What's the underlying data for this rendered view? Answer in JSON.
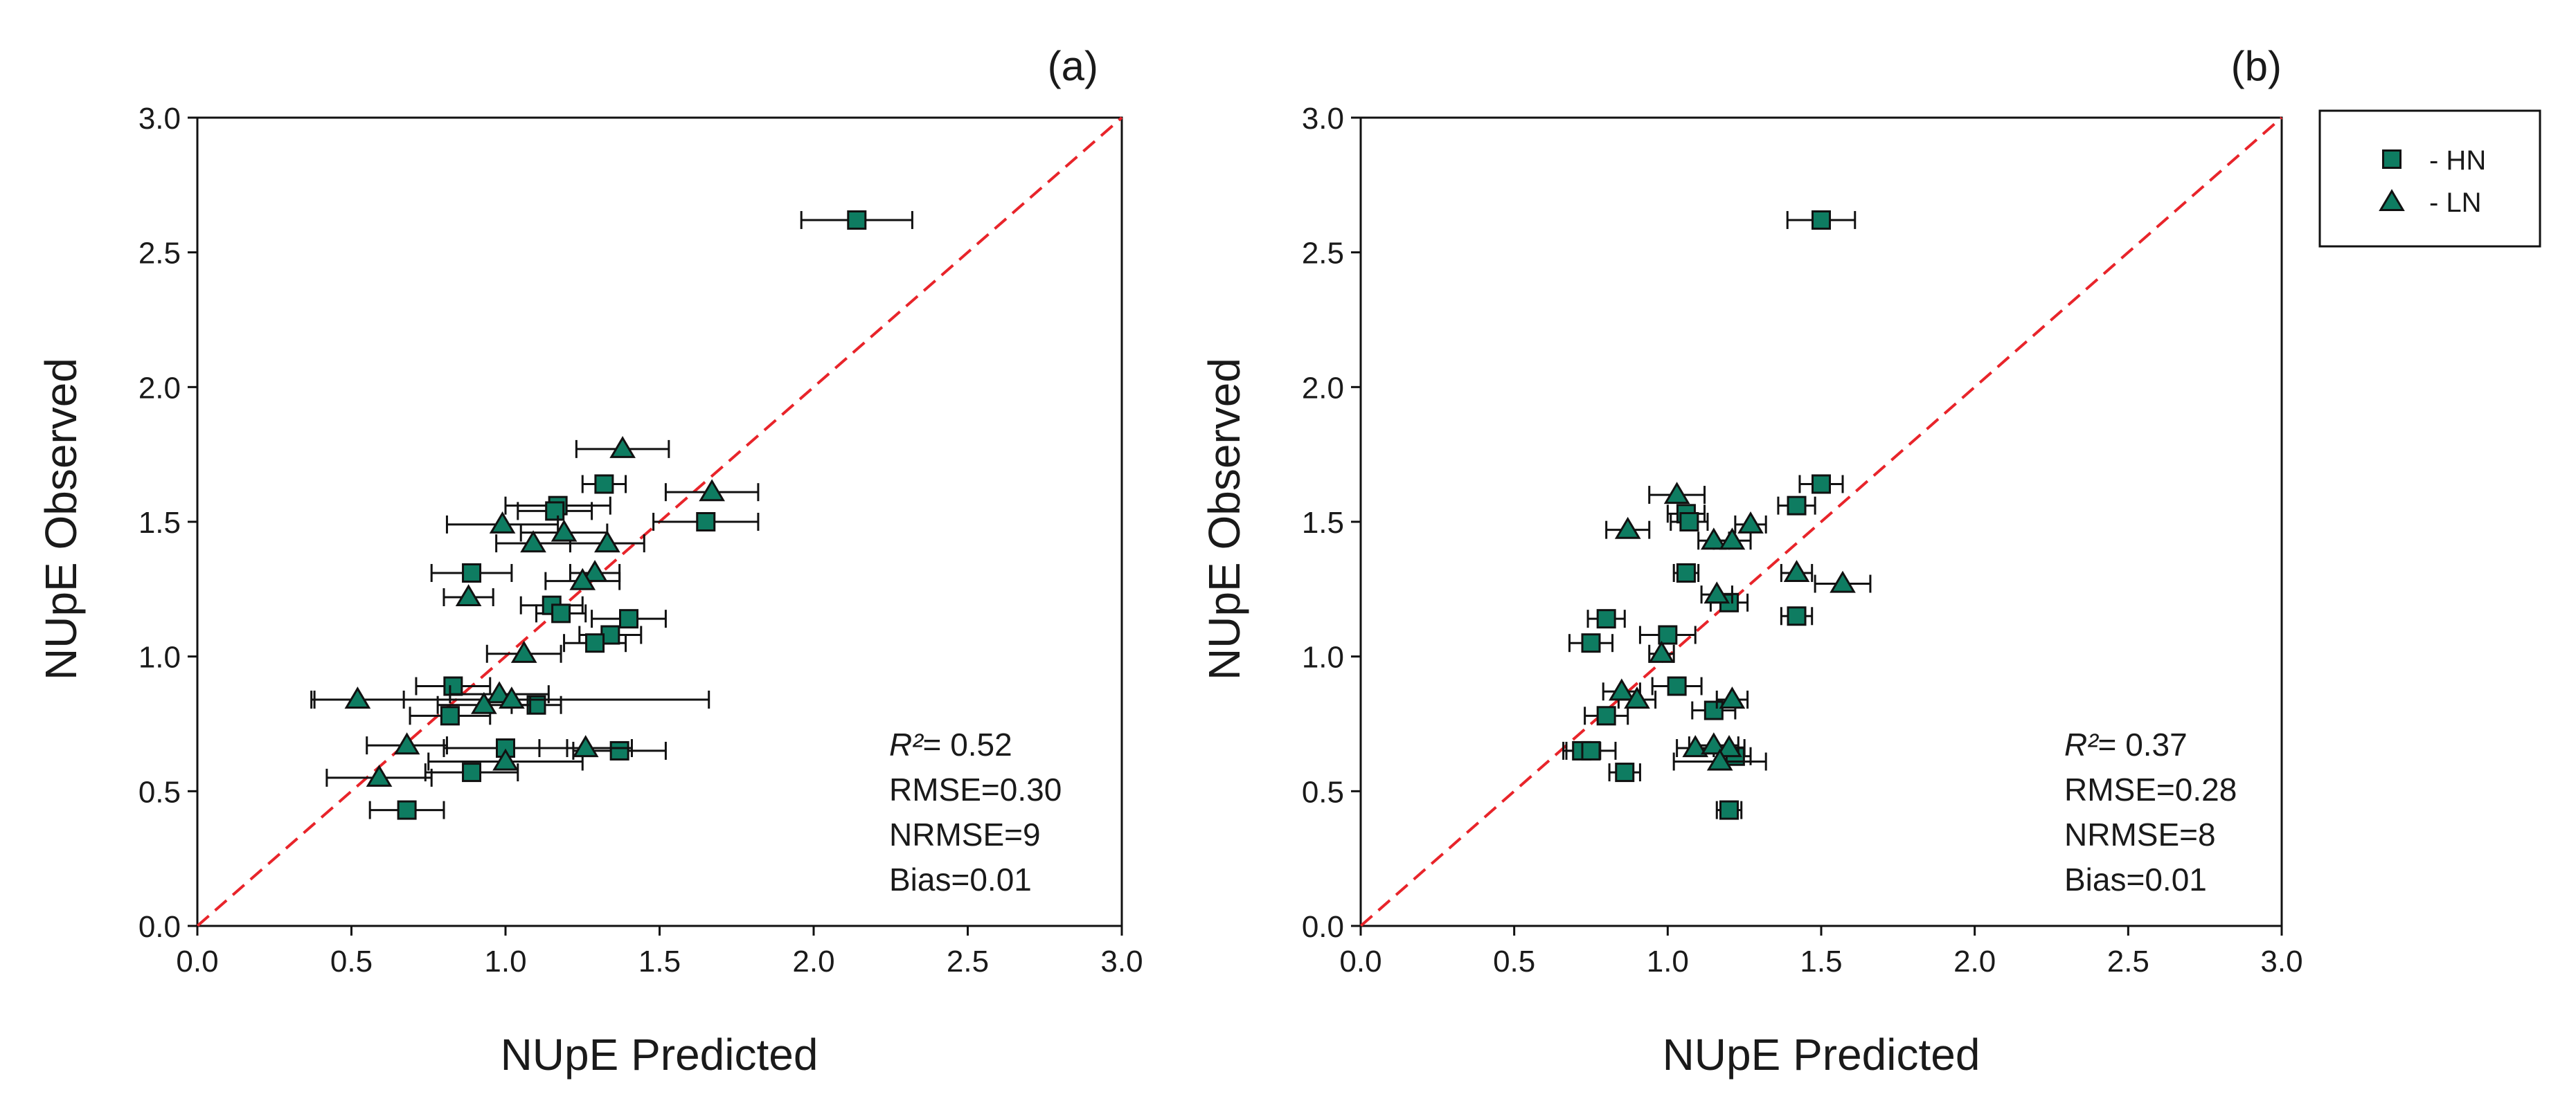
{
  "colors": {
    "marker_fill": "#0E7C61",
    "marker_stroke": "#111111",
    "one_to_one": "#E8242A",
    "axis": "#111111"
  },
  "legend": {
    "items": [
      {
        "label": "- HN",
        "marker": "square"
      },
      {
        "label": "- LN",
        "marker": "triangle"
      }
    ]
  },
  "chart_data": [
    {
      "type": "scatter",
      "panel_label": "(a)",
      "xlabel": "NUpE Predicted",
      "ylabel": "NUpE Observed",
      "xlim": [
        0,
        3
      ],
      "ylim": [
        0,
        3
      ],
      "xticks": [
        "0.0",
        "0.5",
        "1.0",
        "1.5",
        "2.0",
        "2.5",
        "3.0"
      ],
      "yticks": [
        "0.0",
        "0.5",
        "1.0",
        "1.5",
        "2.0",
        "2.5",
        "3.0"
      ],
      "reference_line": "1:1",
      "stats": {
        "r2_label": "R²",
        "r2_value": "= 0.52",
        "rmse": "RMSE=0.30",
        "nrmse": "NRMSE=9",
        "bias": "Bias=0.01"
      },
      "series": [
        {
          "name": "HN",
          "marker": "square",
          "points": [
            {
              "x": 2.14,
              "y": 2.62,
              "xerr": 0.18
            },
            {
              "x": 1.32,
              "y": 1.64,
              "xerr": 0.07
            },
            {
              "x": 1.17,
              "y": 1.56,
              "xerr": 0.17
            },
            {
              "x": 1.16,
              "y": 1.54,
              "xerr": 0.12
            },
            {
              "x": 1.65,
              "y": 1.5,
              "xerr": 0.17
            },
            {
              "x": 0.89,
              "y": 1.31,
              "xerr": 0.13
            },
            {
              "x": 1.15,
              "y": 1.19,
              "xerr": 0.1
            },
            {
              "x": 1.18,
              "y": 1.16,
              "xerr": 0.08
            },
            {
              "x": 1.4,
              "y": 1.14,
              "xerr": 0.12
            },
            {
              "x": 1.34,
              "y": 1.08,
              "xerr": 0.1
            },
            {
              "x": 1.29,
              "y": 1.05,
              "xerr": 0.1
            },
            {
              "x": 0.83,
              "y": 0.89,
              "xerr": 0.12
            },
            {
              "x": 0.82,
              "y": 0.78,
              "xerr": 0.13
            },
            {
              "x": 1.1,
              "y": 0.82,
              "xerr": 0.08
            },
            {
              "x": 1.0,
              "y": 0.66,
              "xerr": 0.2
            },
            {
              "x": 1.37,
              "y": 0.65,
              "xerr": 0.15
            },
            {
              "x": 0.89,
              "y": 0.57,
              "xerr": 0.15
            },
            {
              "x": 0.68,
              "y": 0.43,
              "xerr": 0.12
            }
          ]
        },
        {
          "name": "LN",
          "marker": "triangle",
          "points": [
            {
              "x": 1.38,
              "y": 1.77,
              "xerr": 0.15
            },
            {
              "x": 1.67,
              "y": 1.61,
              "xerr": 0.15
            },
            {
              "x": 0.99,
              "y": 1.49,
              "xerr": 0.18
            },
            {
              "x": 1.19,
              "y": 1.46,
              "xerr": 0.14
            },
            {
              "x": 1.09,
              "y": 1.42,
              "xerr": 0.12
            },
            {
              "x": 1.33,
              "y": 1.42,
              "xerr": 0.12
            },
            {
              "x": 1.29,
              "y": 1.31,
              "xerr": 0.08
            },
            {
              "x": 1.25,
              "y": 1.28,
              "xerr": 0.12
            },
            {
              "x": 0.88,
              "y": 1.22,
              "xerr": 0.08
            },
            {
              "x": 1.06,
              "y": 1.01,
              "xerr": 0.12
            },
            {
              "x": 0.52,
              "y": 0.84,
              "xerr": 0.15
            },
            {
              "x": 0.98,
              "y": 0.86,
              "xerr": 0.16
            },
            {
              "x": 0.93,
              "y": 0.82,
              "xerr": 0.15
            },
            {
              "x": 1.02,
              "y": 0.84,
              "xerr": 0.64
            },
            {
              "x": 0.68,
              "y": 0.67,
              "xerr": 0.13
            },
            {
              "x": 1.26,
              "y": 0.66,
              "xerr": 0.15
            },
            {
              "x": 1.0,
              "y": 0.61,
              "xerr": 0.25
            },
            {
              "x": 0.59,
              "y": 0.55,
              "xerr": 0.17
            }
          ]
        }
      ]
    },
    {
      "type": "scatter",
      "panel_label": "(b)",
      "xlabel": "NUpE Predicted",
      "ylabel": "NUpE Observed",
      "xlim": [
        0,
        3
      ],
      "ylim": [
        0,
        3
      ],
      "xticks": [
        "0.0",
        "0.5",
        "1.0",
        "1.5",
        "2.0",
        "2.5",
        "3.0"
      ],
      "yticks": [
        "0.0",
        "0.5",
        "1.0",
        "1.5",
        "2.0",
        "2.5",
        "3.0"
      ],
      "reference_line": "1:1",
      "stats": {
        "r2_label": "R²",
        "r2_value": "= 0.37",
        "rmse": "RMSE=0.28",
        "nrmse": "NRMSE=8",
        "bias": "Bias=0.01"
      },
      "series": [
        {
          "name": "HN",
          "marker": "square",
          "points": [
            {
              "x": 1.5,
              "y": 2.62,
              "xerr": 0.11
            },
            {
              "x": 1.5,
              "y": 1.64,
              "xerr": 0.07
            },
            {
              "x": 1.42,
              "y": 1.56,
              "xerr": 0.06
            },
            {
              "x": 1.06,
              "y": 1.53,
              "xerr": 0.06
            },
            {
              "x": 1.07,
              "y": 1.5,
              "xerr": 0.06
            },
            {
              "x": 1.06,
              "y": 1.31,
              "xerr": 0.04
            },
            {
              "x": 1.2,
              "y": 1.2,
              "xerr": 0.06
            },
            {
              "x": 1.42,
              "y": 1.15,
              "xerr": 0.05
            },
            {
              "x": 0.8,
              "y": 1.14,
              "xerr": 0.06
            },
            {
              "x": 0.75,
              "y": 1.05,
              "xerr": 0.07
            },
            {
              "x": 1.0,
              "y": 1.08,
              "xerr": 0.09
            },
            {
              "x": 1.03,
              "y": 0.89,
              "xerr": 0.08
            },
            {
              "x": 0.8,
              "y": 0.78,
              "xerr": 0.07
            },
            {
              "x": 1.15,
              "y": 0.8,
              "xerr": 0.07
            },
            {
              "x": 0.72,
              "y": 0.65,
              "xerr": 0.06
            },
            {
              "x": 0.75,
              "y": 0.65,
              "xerr": 0.08
            },
            {
              "x": 1.22,
              "y": 0.63,
              "xerr": 0.05
            },
            {
              "x": 0.86,
              "y": 0.57,
              "xerr": 0.05
            },
            {
              "x": 1.2,
              "y": 0.43,
              "xerr": 0.04
            }
          ]
        },
        {
          "name": "LN",
          "marker": "triangle",
          "points": [
            {
              "x": 1.03,
              "y": 1.6,
              "xerr": 0.09
            },
            {
              "x": 0.87,
              "y": 1.47,
              "xerr": 0.07
            },
            {
              "x": 1.27,
              "y": 1.49,
              "xerr": 0.05
            },
            {
              "x": 1.15,
              "y": 1.43,
              "xerr": 0.05
            },
            {
              "x": 1.21,
              "y": 1.43,
              "xerr": 0.06
            },
            {
              "x": 1.42,
              "y": 1.31,
              "xerr": 0.05
            },
            {
              "x": 1.57,
              "y": 1.27,
              "xerr": 0.09
            },
            {
              "x": 1.16,
              "y": 1.23,
              "xerr": 0.05
            },
            {
              "x": 0.98,
              "y": 1.01,
              "xerr": 0.04
            },
            {
              "x": 0.85,
              "y": 0.87,
              "xerr": 0.06
            },
            {
              "x": 0.9,
              "y": 0.84,
              "xerr": 0.06
            },
            {
              "x": 1.21,
              "y": 0.84,
              "xerr": 0.05
            },
            {
              "x": 1.09,
              "y": 0.66,
              "xerr": 0.06
            },
            {
              "x": 1.15,
              "y": 0.67,
              "xerr": 0.08
            },
            {
              "x": 1.2,
              "y": 0.66,
              "xerr": 0.05
            },
            {
              "x": 1.17,
              "y": 0.61,
              "xerr": 0.15
            }
          ]
        }
      ]
    }
  ]
}
